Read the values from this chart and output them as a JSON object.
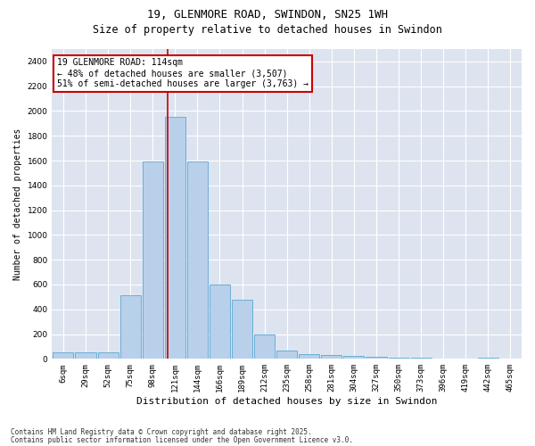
{
  "title1": "19, GLENMORE ROAD, SWINDON, SN25 1WH",
  "title2": "Size of property relative to detached houses in Swindon",
  "xlabel": "Distribution of detached houses by size in Swindon",
  "ylabel": "Number of detached properties",
  "categories": [
    "6sqm",
    "29sqm",
    "52sqm",
    "75sqm",
    "98sqm",
    "121sqm",
    "144sqm",
    "166sqm",
    "189sqm",
    "212sqm",
    "235sqm",
    "258sqm",
    "281sqm",
    "304sqm",
    "327sqm",
    "350sqm",
    "373sqm",
    "396sqm",
    "419sqm",
    "442sqm",
    "465sqm"
  ],
  "values": [
    55,
    50,
    55,
    510,
    1590,
    1950,
    1590,
    600,
    475,
    195,
    70,
    40,
    32,
    22,
    16,
    12,
    7,
    5,
    2,
    7,
    5
  ],
  "bar_color": "#b8d0ea",
  "bar_edge_color": "#6baed6",
  "bar_edge_width": 0.7,
  "bg_color": "#dde4f0",
  "grid_color": "#ffffff",
  "vline_color": "#cc0000",
  "vline_x": 4.65,
  "annotation_text": "19 GLENMORE ROAD: 114sqm\n← 48% of detached houses are smaller (3,507)\n51% of semi-detached houses are larger (3,763) →",
  "annotation_box_color": "#cc0000",
  "ylim": [
    0,
    2500
  ],
  "yticks": [
    0,
    200,
    400,
    600,
    800,
    1000,
    1200,
    1400,
    1600,
    1800,
    2000,
    2200,
    2400
  ],
  "footer1": "Contains HM Land Registry data © Crown copyright and database right 2025.",
  "footer2": "Contains public sector information licensed under the Open Government Licence v3.0.",
  "title_fontsize": 9,
  "subtitle_fontsize": 8.5,
  "tick_fontsize": 6.5,
  "ylabel_fontsize": 7,
  "xlabel_fontsize": 8,
  "annotation_fontsize": 7,
  "footer_fontsize": 5.5
}
